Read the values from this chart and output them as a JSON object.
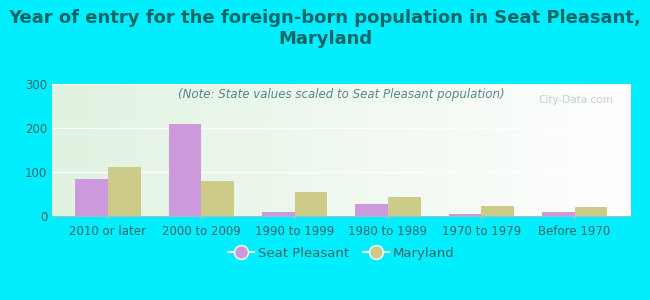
{
  "title": "Year of entry for the foreign-born population in Seat Pleasant,\nMaryland",
  "subtitle": "(Note: State values scaled to Seat Pleasant population)",
  "categories": [
    "2010 or later",
    "2000 to 2009",
    "1990 to 1999",
    "1980 to 1989",
    "1970 to 1979",
    "Before 1970"
  ],
  "seat_pleasant": [
    83,
    210,
    8,
    28,
    5,
    8
  ],
  "maryland": [
    112,
    80,
    55,
    43,
    22,
    20
  ],
  "bar_color_sp": "#cc99dd",
  "bar_color_md": "#cccc88",
  "background_outer": "#00eeff",
  "ylim": [
    0,
    300
  ],
  "yticks": [
    0,
    100,
    200,
    300
  ],
  "bar_width": 0.35,
  "legend_sp": "Seat Pleasant",
  "legend_md": "Maryland",
  "title_fontsize": 13,
  "subtitle_fontsize": 8.5,
  "tick_fontsize": 8.5,
  "legend_fontsize": 9.5,
  "title_color": "#006666",
  "subtitle_color": "#558888",
  "tick_color": "#336666",
  "watermark": "City-Data.com"
}
